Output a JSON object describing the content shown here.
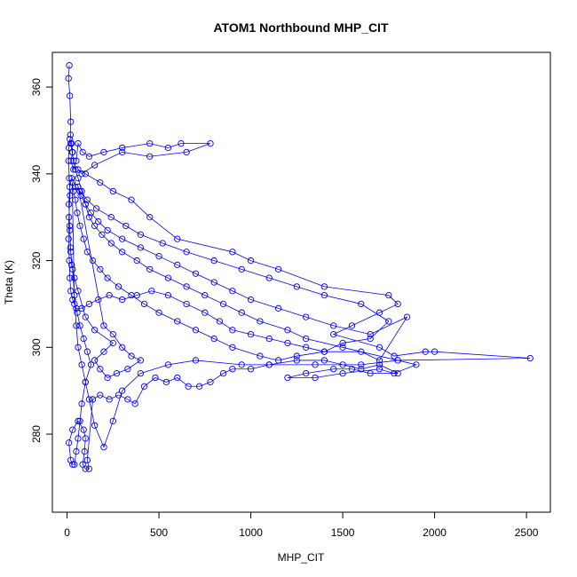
{
  "chart_data": {
    "type": "line",
    "title": "ATOM1 Northbound MHP_CIT",
    "xlabel": "MHP_CIT",
    "ylabel": "Theta (K)",
    "xlim": [
      -80,
      2630
    ],
    "ylim": [
      262,
      368
    ],
    "x_ticks": [
      0,
      500,
      1000,
      1500,
      2000,
      2500
    ],
    "y_ticks": [
      280,
      300,
      320,
      340,
      360
    ],
    "grid": false,
    "legend": "none",
    "series": [
      {
        "color": "#0000ff",
        "markers": "open-circle",
        "points": [
          [
            12,
            365
          ],
          [
            8,
            362
          ],
          [
            15,
            358
          ],
          [
            20,
            352
          ],
          [
            18,
            349
          ],
          [
            25,
            347
          ],
          [
            30,
            345
          ],
          [
            22,
            343
          ],
          [
            35,
            341
          ],
          [
            50,
            343
          ],
          [
            60,
            347
          ],
          [
            85,
            345
          ],
          [
            120,
            344
          ],
          [
            200,
            345
          ],
          [
            300,
            346
          ],
          [
            450,
            347
          ],
          [
            550,
            346
          ],
          [
            620,
            347
          ],
          [
            780,
            347
          ],
          [
            650,
            345
          ],
          [
            450,
            344
          ],
          [
            300,
            345
          ],
          [
            150,
            342
          ],
          [
            80,
            340
          ],
          [
            60,
            341
          ],
          [
            100,
            340
          ],
          [
            180,
            338
          ],
          [
            250,
            336
          ],
          [
            350,
            334
          ],
          [
            450,
            330
          ],
          [
            600,
            325
          ],
          [
            900,
            322
          ],
          [
            1000,
            320
          ],
          [
            1150,
            318
          ],
          [
            1400,
            314
          ],
          [
            1750,
            312
          ],
          [
            1800,
            310
          ],
          [
            1700,
            308
          ],
          [
            1550,
            305
          ],
          [
            1450,
            303
          ],
          [
            1700,
            300
          ],
          [
            1780,
            298
          ],
          [
            1950,
            299
          ],
          [
            2000,
            299
          ],
          [
            2520,
            297.5
          ],
          [
            1800,
            297
          ],
          [
            1600,
            296
          ],
          [
            1350,
            296
          ],
          [
            1100,
            296
          ],
          [
            950,
            296
          ],
          [
            700,
            297
          ],
          [
            550,
            296
          ],
          [
            400,
            294
          ],
          [
            300,
            290
          ],
          [
            250,
            283
          ],
          [
            200,
            277
          ],
          [
            150,
            282
          ],
          [
            120,
            288
          ],
          [
            100,
            292
          ],
          [
            80,
            296
          ],
          [
            60,
            300
          ],
          [
            50,
            305
          ],
          [
            40,
            312
          ],
          [
            30,
            318
          ],
          [
            20,
            322
          ],
          [
            15,
            327
          ],
          [
            10,
            333
          ],
          [
            14,
            337
          ],
          [
            25,
            339
          ],
          [
            45,
            337
          ],
          [
            70,
            336
          ],
          [
            110,
            334
          ],
          [
            160,
            332
          ],
          [
            240,
            330
          ],
          [
            320,
            328
          ],
          [
            400,
            326
          ],
          [
            520,
            324
          ],
          [
            650,
            322
          ],
          [
            800,
            320
          ],
          [
            950,
            318
          ],
          [
            1100,
            316
          ],
          [
            1250,
            314
          ],
          [
            1400,
            312
          ],
          [
            1600,
            310
          ],
          [
            1750,
            306
          ],
          [
            1650,
            302
          ],
          [
            1500,
            301
          ],
          [
            1400,
            299
          ],
          [
            1250,
            298
          ],
          [
            1150,
            297
          ],
          [
            1050,
            298
          ],
          [
            900,
            300
          ],
          [
            800,
            302
          ],
          [
            700,
            304
          ],
          [
            600,
            306
          ],
          [
            500,
            308
          ],
          [
            420,
            310
          ],
          [
            350,
            312
          ],
          [
            280,
            314
          ],
          [
            220,
            316
          ],
          [
            180,
            318
          ],
          [
            140,
            320
          ],
          [
            110,
            322
          ],
          [
            90,
            325
          ],
          [
            70,
            328
          ],
          [
            55,
            331
          ],
          [
            45,
            334
          ],
          [
            35,
            336
          ],
          [
            28,
            338
          ],
          [
            40,
            310
          ],
          [
            55,
            308
          ],
          [
            70,
            305
          ],
          [
            90,
            302
          ],
          [
            110,
            299
          ],
          [
            130,
            296
          ],
          [
            100,
            292
          ],
          [
            80,
            287
          ],
          [
            70,
            283
          ],
          [
            60,
            279
          ],
          [
            50,
            276
          ],
          [
            40,
            273
          ],
          [
            30,
            273
          ],
          [
            20,
            274
          ],
          [
            10,
            278
          ],
          [
            30,
            281
          ],
          [
            60,
            283
          ],
          [
            90,
            281
          ],
          [
            100,
            279
          ],
          [
            95,
            276
          ],
          [
            85,
            273
          ],
          [
            100,
            272
          ],
          [
            120,
            272
          ],
          [
            110,
            274
          ],
          [
            140,
            288
          ],
          [
            180,
            289
          ],
          [
            230,
            288
          ],
          [
            280,
            289
          ],
          [
            330,
            288
          ],
          [
            370,
            287
          ],
          [
            420,
            291
          ],
          [
            480,
            293
          ],
          [
            540,
            292
          ],
          [
            600,
            293
          ],
          [
            660,
            291
          ],
          [
            720,
            291
          ],
          [
            780,
            292
          ],
          [
            850,
            294
          ],
          [
            900,
            295
          ],
          [
            1000,
            295
          ],
          [
            1100,
            296
          ],
          [
            1250,
            297
          ],
          [
            1400,
            297
          ],
          [
            1500,
            296
          ],
          [
            1600,
            295
          ],
          [
            1700,
            296
          ],
          [
            1800,
            294
          ],
          [
            1650,
            294
          ],
          [
            1550,
            295
          ],
          [
            1450,
            295
          ],
          [
            1300,
            294
          ],
          [
            1200,
            293
          ],
          [
            1350,
            293
          ],
          [
            1500,
            294
          ],
          [
            1700,
            295
          ],
          [
            1780,
            294
          ],
          [
            1900,
            296
          ],
          [
            1500,
            300
          ],
          [
            1300,
            302
          ],
          [
            1200,
            304
          ],
          [
            1050,
            306
          ],
          [
            950,
            308
          ],
          [
            850,
            310
          ],
          [
            750,
            312
          ],
          [
            650,
            314
          ],
          [
            550,
            316
          ],
          [
            450,
            318
          ],
          [
            380,
            320
          ],
          [
            300,
            322
          ],
          [
            240,
            324
          ],
          [
            190,
            326
          ],
          [
            150,
            328
          ],
          [
            120,
            330
          ],
          [
            100,
            333
          ],
          [
            80,
            336
          ],
          [
            60,
            339
          ],
          [
            45,
            341
          ],
          [
            35,
            343
          ],
          [
            28,
            345
          ],
          [
            20,
            347
          ],
          [
            15,
            348
          ],
          [
            10,
            346
          ],
          [
            8,
            343
          ],
          [
            12,
            339
          ],
          [
            16,
            335
          ],
          [
            10,
            330
          ],
          [
            8,
            325
          ],
          [
            12,
            320
          ],
          [
            15,
            316
          ],
          [
            20,
            313
          ],
          [
            30,
            311
          ],
          [
            50,
            309
          ],
          [
            80,
            309
          ],
          [
            120,
            310
          ],
          [
            170,
            311
          ],
          [
            230,
            312
          ],
          [
            300,
            311
          ],
          [
            380,
            312
          ],
          [
            460,
            313
          ],
          [
            550,
            312
          ],
          [
            650,
            310
          ],
          [
            750,
            308
          ],
          [
            830,
            306
          ],
          [
            900,
            304
          ],
          [
            1000,
            303
          ],
          [
            1100,
            302
          ],
          [
            1200,
            301
          ],
          [
            1300,
            300
          ],
          [
            1400,
            299
          ],
          [
            1600,
            299
          ],
          [
            1700,
            297
          ],
          [
            1850,
            307
          ],
          [
            1650,
            303
          ],
          [
            1450,
            305
          ],
          [
            1300,
            307
          ],
          [
            1150,
            309
          ],
          [
            1000,
            311
          ],
          [
            900,
            313
          ],
          [
            800,
            315
          ],
          [
            700,
            317
          ],
          [
            600,
            319
          ],
          [
            500,
            321
          ],
          [
            400,
            323
          ],
          [
            300,
            325
          ],
          [
            220,
            327
          ],
          [
            170,
            329
          ],
          [
            130,
            331
          ],
          [
            100,
            333
          ],
          [
            75,
            335
          ],
          [
            60,
            337
          ],
          [
            200,
            305
          ],
          [
            250,
            303
          ],
          [
            300,
            300
          ],
          [
            350,
            298
          ],
          [
            400,
            297
          ],
          [
            330,
            295
          ],
          [
            270,
            294
          ],
          [
            220,
            293
          ],
          [
            180,
            295
          ],
          [
            150,
            297
          ],
          [
            200,
            299
          ],
          [
            250,
            301
          ],
          [
            150,
            304
          ],
          [
            100,
            307
          ],
          [
            60,
            313
          ],
          [
            40,
            316
          ],
          [
            25,
            319
          ],
          [
            18,
            323
          ],
          [
            14,
            328
          ]
        ]
      }
    ]
  }
}
